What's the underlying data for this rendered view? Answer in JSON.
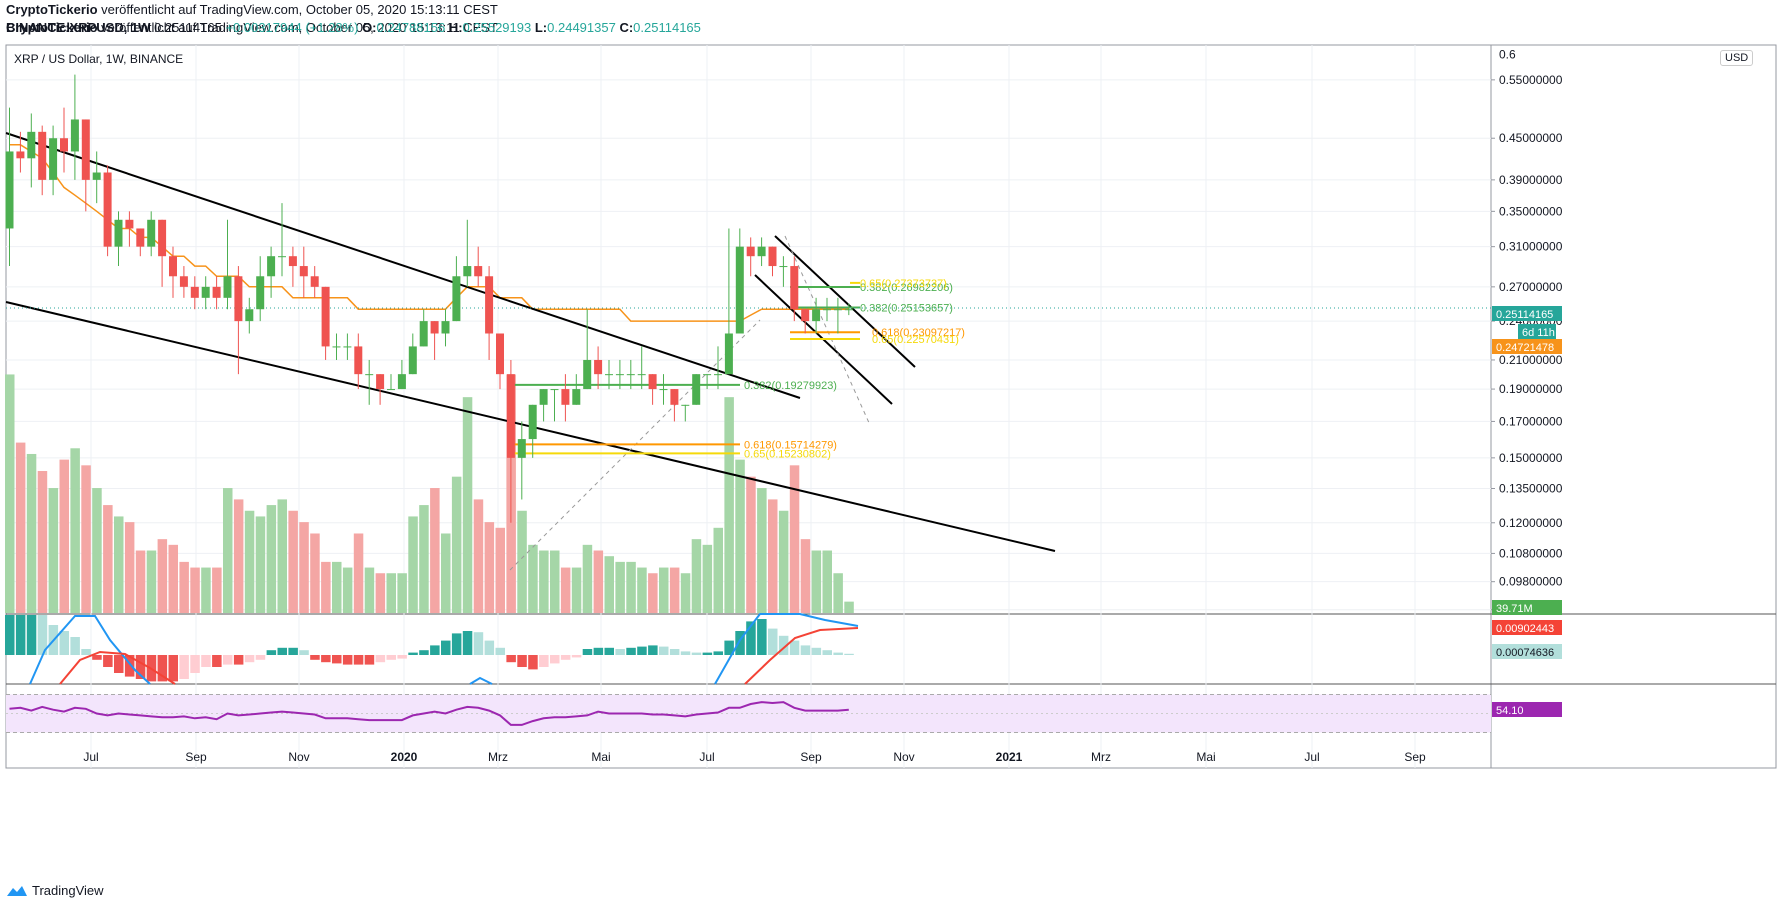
{
  "header": {
    "author": "CryptoTickerio",
    "published": " veröffentlicht auf TradingView.com, October 05, 2020 15:13:11 CEST",
    "symbol": "BINANCE:XRPUSD, 1W",
    "last": "0.25114165",
    "change": "+0.00317944 (+1.28%)",
    "o_label": "O:",
    "o": "0.24788156",
    "h_label": "H:",
    "h": "0.25529193",
    "l_label": "L:",
    "l": "0.24491357",
    "c_label": "C:",
    "c": "0.25114165"
  },
  "pane_title": "XRP / US Dollar, 1W, BINANCE",
  "currency_button": "USD",
  "footer_brand": "TradingView",
  "colors": {
    "up": "#26a69a",
    "down": "#ef5350",
    "upc": "#4caf50",
    "ma": "#f7931a",
    "fib_green": "#4caf50",
    "fib_orange": "#ff9800",
    "fib_yellow": "#f5d90a",
    "rsi": "#9c27b0",
    "macd": "#2196f3",
    "signal": "#f44336"
  },
  "chart_data": {
    "type": "candlestick",
    "title": "XRP / US Dollar, 1W, BINANCE",
    "y_scale": "log",
    "ylim": [
      0.088,
      0.62
    ],
    "y_ticks": [
      "0.55000000",
      "0.45000000",
      "0.39000000",
      "0.35000000",
      "0.31000000",
      "0.27000000",
      "0.24000000",
      "0.21000000",
      "0.19000000",
      "0.17000000",
      "0.15000000",
      "0.13500000",
      "0.12000000",
      "0.10800000",
      "0.09800000",
      "0.08900000"
    ],
    "y_top_label": "0.6",
    "x_ticks": [
      "Jul",
      "Sep",
      "Nov",
      "2020",
      "Mrz",
      "Mai",
      "Jul",
      "Sep",
      "Nov",
      "2021",
      "Mrz",
      "Mai",
      "Jul",
      "Sep"
    ],
    "price_badges": [
      {
        "value": "0.25114165",
        "color": "#26a69a"
      },
      {
        "value": "6d 11h",
        "color": "#26a69a"
      },
      {
        "value": "0.24721478",
        "color": "#f7931a"
      },
      {
        "value": "39.71M",
        "color": "#4caf50"
      },
      {
        "value": "0.00902443",
        "color": "#f44336"
      },
      {
        "value": "0.00074636",
        "color": "#b2dfdb"
      },
      {
        "value": "54.10",
        "color": "#9c27b0"
      }
    ],
    "candles": [
      [
        0.33,
        0.43,
        0.5,
        0.29
      ],
      [
        0.43,
        0.42,
        0.46,
        0.4
      ],
      [
        0.42,
        0.46,
        0.49,
        0.38
      ],
      [
        0.46,
        0.39,
        0.47,
        0.37
      ],
      [
        0.39,
        0.45,
        0.47,
        0.37
      ],
      [
        0.45,
        0.43,
        0.5,
        0.4
      ],
      [
        0.43,
        0.48,
        0.56,
        0.39
      ],
      [
        0.48,
        0.39,
        0.48,
        0.35
      ],
      [
        0.39,
        0.4,
        0.43,
        0.36
      ],
      [
        0.4,
        0.31,
        0.41,
        0.3
      ],
      [
        0.31,
        0.34,
        0.35,
        0.29
      ],
      [
        0.34,
        0.33,
        0.35,
        0.31
      ],
      [
        0.33,
        0.31,
        0.33,
        0.3
      ],
      [
        0.31,
        0.34,
        0.35,
        0.3
      ],
      [
        0.34,
        0.3,
        0.34,
        0.27
      ],
      [
        0.3,
        0.28,
        0.31,
        0.26
      ],
      [
        0.28,
        0.27,
        0.29,
        0.26
      ],
      [
        0.27,
        0.26,
        0.28,
        0.25
      ],
      [
        0.26,
        0.27,
        0.28,
        0.25
      ],
      [
        0.27,
        0.26,
        0.28,
        0.25
      ],
      [
        0.26,
        0.28,
        0.34,
        0.25
      ],
      [
        0.28,
        0.24,
        0.29,
        0.2
      ],
      [
        0.24,
        0.25,
        0.26,
        0.23
      ],
      [
        0.25,
        0.28,
        0.3,
        0.24
      ],
      [
        0.28,
        0.3,
        0.31,
        0.26
      ],
      [
        0.3,
        0.3,
        0.36,
        0.28
      ],
      [
        0.3,
        0.29,
        0.31,
        0.27
      ],
      [
        0.29,
        0.28,
        0.31,
        0.26
      ],
      [
        0.28,
        0.27,
        0.29,
        0.26
      ],
      [
        0.27,
        0.22,
        0.27,
        0.21
      ],
      [
        0.22,
        0.22,
        0.23,
        0.21
      ],
      [
        0.22,
        0.22,
        0.23,
        0.21
      ],
      [
        0.22,
        0.2,
        0.23,
        0.19
      ],
      [
        0.2,
        0.2,
        0.21,
        0.18
      ],
      [
        0.2,
        0.19,
        0.2,
        0.18
      ],
      [
        0.19,
        0.19,
        0.2,
        0.19
      ],
      [
        0.19,
        0.2,
        0.21,
        0.19
      ],
      [
        0.2,
        0.22,
        0.23,
        0.2
      ],
      [
        0.22,
        0.24,
        0.25,
        0.22
      ],
      [
        0.24,
        0.23,
        0.24,
        0.21
      ],
      [
        0.23,
        0.24,
        0.25,
        0.22
      ],
      [
        0.24,
        0.28,
        0.3,
        0.24
      ],
      [
        0.28,
        0.29,
        0.34,
        0.27
      ],
      [
        0.29,
        0.28,
        0.31,
        0.27
      ],
      [
        0.28,
        0.23,
        0.29,
        0.21
      ],
      [
        0.23,
        0.2,
        0.23,
        0.19
      ],
      [
        0.2,
        0.15,
        0.21,
        0.12
      ],
      [
        0.15,
        0.16,
        0.17,
        0.13
      ],
      [
        0.16,
        0.18,
        0.18,
        0.15
      ],
      [
        0.18,
        0.19,
        0.19,
        0.17
      ],
      [
        0.19,
        0.19,
        0.19,
        0.17
      ],
      [
        0.19,
        0.18,
        0.2,
        0.17
      ],
      [
        0.18,
        0.19,
        0.2,
        0.18
      ],
      [
        0.19,
        0.21,
        0.25,
        0.19
      ],
      [
        0.21,
        0.2,
        0.22,
        0.19
      ],
      [
        0.2,
        0.2,
        0.21,
        0.19
      ],
      [
        0.2,
        0.2,
        0.21,
        0.19
      ],
      [
        0.2,
        0.2,
        0.21,
        0.19
      ],
      [
        0.2,
        0.2,
        0.22,
        0.19
      ],
      [
        0.2,
        0.19,
        0.2,
        0.18
      ],
      [
        0.19,
        0.19,
        0.2,
        0.18
      ],
      [
        0.19,
        0.18,
        0.19,
        0.17
      ],
      [
        0.18,
        0.18,
        0.18,
        0.17
      ],
      [
        0.18,
        0.2,
        0.2,
        0.18
      ],
      [
        0.2,
        0.2,
        0.2,
        0.19
      ],
      [
        0.2,
        0.2,
        0.22,
        0.19
      ],
      [
        0.2,
        0.23,
        0.33,
        0.2
      ],
      [
        0.23,
        0.31,
        0.33,
        0.23
      ],
      [
        0.31,
        0.3,
        0.32,
        0.28
      ],
      [
        0.3,
        0.31,
        0.32,
        0.29
      ],
      [
        0.31,
        0.29,
        0.31,
        0.28
      ],
      [
        0.29,
        0.29,
        0.3,
        0.27
      ],
      [
        0.29,
        0.25,
        0.3,
        0.24
      ],
      [
        0.25,
        0.24,
        0.25,
        0.23
      ],
      [
        0.24,
        0.25,
        0.26,
        0.23
      ],
      [
        0.25,
        0.25,
        0.26,
        0.24
      ],
      [
        0.25,
        0.25,
        0.26,
        0.23
      ],
      [
        0.25,
        0.25,
        0.255,
        0.245
      ]
    ],
    "volume": [
      0.42,
      0.3,
      0.28,
      0.25,
      0.22,
      0.27,
      0.29,
      0.26,
      0.22,
      0.19,
      0.17,
      0.16,
      0.11,
      0.11,
      0.13,
      0.12,
      0.09,
      0.08,
      0.08,
      0.08,
      0.22,
      0.2,
      0.18,
      0.17,
      0.19,
      0.2,
      0.18,
      0.16,
      0.14,
      0.09,
      0.09,
      0.08,
      0.14,
      0.08,
      0.07,
      0.07,
      0.07,
      0.17,
      0.19,
      0.22,
      0.14,
      0.24,
      0.38,
      0.2,
      0.16,
      0.15,
      0.42,
      0.18,
      0.12,
      0.11,
      0.11,
      0.08,
      0.08,
      0.12,
      0.11,
      0.1,
      0.09,
      0.09,
      0.08,
      0.07,
      0.08,
      0.08,
      0.07,
      0.13,
      0.12,
      0.15,
      0.38,
      0.27,
      0.24,
      0.22,
      0.2,
      0.18,
      0.26,
      0.13,
      0.11,
      0.11,
      0.07,
      0.02
    ],
    "ma": [
      0.44,
      0.44,
      0.43,
      0.42,
      0.4,
      0.38,
      0.37,
      0.36,
      0.35,
      0.34,
      0.33,
      0.33,
      0.32,
      0.32,
      0.31,
      0.3,
      0.3,
      0.29,
      0.29,
      0.28,
      0.28,
      0.28,
      0.27,
      0.27,
      0.27,
      0.27,
      0.26,
      0.26,
      0.26,
      0.26,
      0.26,
      0.26,
      0.25,
      0.25,
      0.25,
      0.25,
      0.25,
      0.25,
      0.25,
      0.25,
      0.25,
      0.26,
      0.27,
      0.27,
      0.27,
      0.26,
      0.26,
      0.26,
      0.25,
      0.25,
      0.25,
      0.25,
      0.25,
      0.25,
      0.25,
      0.25,
      0.25,
      0.24,
      0.24,
      0.24,
      0.24,
      0.24,
      0.24,
      0.24,
      0.24,
      0.24,
      0.24,
      0.24,
      0.245,
      0.25,
      0.25,
      0.25,
      0.25,
      0.25,
      0.25,
      0.25,
      0.25,
      0.25
    ],
    "fib_levels": [
      {
        "label": "0.382(0.19279923)",
        "value": 0.1928,
        "color": "#4caf50"
      },
      {
        "label": "0.618(0.15714279)",
        "value": 0.1571,
        "color": "#ff9800"
      },
      {
        "label": "0.65(0.15230802)",
        "value": 0.1523,
        "color": "#f5d90a"
      },
      {
        "label": "0.382(0.25153657)",
        "value": 0.2515,
        "color": "#4caf50"
      },
      {
        "label": "0.382(0.26982206)",
        "value": 0.2698,
        "color": "#4caf50"
      },
      {
        "label": "0.65(0.27373737)",
        "value": 0.2737,
        "color": "#f5d90a"
      },
      {
        "label": "0.618(0.23097217)",
        "value": 0.231,
        "color": "#ff9800"
      },
      {
        "label": "0.65(0.22570431)",
        "value": 0.2257,
        "color": "#f5d90a"
      }
    ],
    "rsi": [
      55,
      56,
      53,
      57,
      54,
      52,
      56,
      55,
      50,
      48,
      50,
      49,
      48,
      47,
      46,
      46,
      47,
      45,
      46,
      44,
      50,
      48,
      49,
      50,
      51,
      52,
      51,
      50,
      49,
      45,
      45,
      45,
      44,
      43,
      43,
      43,
      43,
      48,
      50,
      52,
      50,
      54,
      57,
      56,
      53,
      48,
      38,
      38,
      42,
      45,
      46,
      46,
      47,
      48,
      52,
      50,
      50,
      50,
      50,
      49,
      49,
      48,
      47,
      49,
      50,
      51,
      56,
      56,
      60,
      62,
      61,
      62,
      56,
      53,
      53,
      53,
      53,
      54
    ],
    "rsi_range": [
      30,
      70
    ],
    "macd_hist": [
      0.035,
      0.035,
      0.035,
      0.034,
      0.025,
      0.02,
      0.015,
      0.005,
      -0.004,
      -0.01,
      -0.015,
      -0.018,
      -0.02,
      -0.022,
      -0.022,
      -0.022,
      -0.02,
      -0.015,
      -0.01,
      -0.01,
      -0.008,
      -0.008,
      -0.006,
      -0.004,
      0.004,
      0.006,
      0.006,
      0.004,
      -0.004,
      -0.006,
      -0.007,
      -0.008,
      -0.008,
      -0.008,
      -0.006,
      -0.004,
      -0.003,
      0.002,
      0.004,
      0.008,
      0.012,
      0.018,
      0.02,
      0.019,
      0.012,
      0.006,
      -0.006,
      -0.01,
      -0.012,
      -0.01,
      -0.007,
      -0.004,
      -0.002,
      0.005,
      0.006,
      0.006,
      0.005,
      0.006,
      0.007,
      0.008,
      0.007,
      0.005,
      0.003,
      0.002,
      0.002,
      0.003,
      0.012,
      0.02,
      0.028,
      0.03,
      0.022,
      0.016,
      0.012,
      0.008,
      0.006,
      0.004,
      0.002,
      0.001
    ]
  }
}
